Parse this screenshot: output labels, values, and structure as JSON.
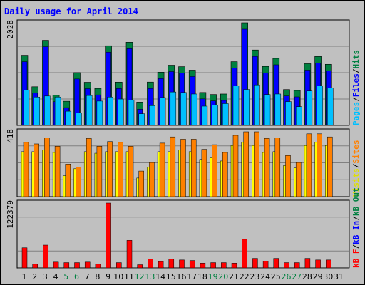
{
  "chart_data": {
    "type": "bar",
    "title": "Daily usage for April 2014",
    "days": [
      "1",
      "2",
      "3",
      "4",
      "5",
      "6",
      "7",
      "8",
      "9",
      "10",
      "11",
      "12",
      "13",
      "14",
      "15",
      "16",
      "17",
      "18",
      "19",
      "20",
      "21",
      "22",
      "23",
      "24",
      "25",
      "26",
      "27",
      "28",
      "29",
      "30",
      "31"
    ],
    "weekend_days": [
      "5",
      "6",
      "12",
      "13",
      "19",
      "20",
      "26",
      "27"
    ],
    "panels": [
      {
        "id": "hits-files-pages",
        "scale_label": "2028",
        "ymax": 2028,
        "series": [
          {
            "name": "Hits",
            "color": "#008040",
            "values": [
              1386,
              763,
              1682,
              595,
              477,
              1044,
              852,
              730,
              1574,
              855,
              1643,
              460,
              856,
              1052,
              1190,
              1160,
              1092,
              650,
              610,
              620,
              1259,
              2028,
              1490,
              1166,
              1324,
              708,
              690,
              1219,
              1361,
              1207
            ]
          },
          {
            "name": "Files",
            "color": "#0000ff",
            "values": [
              1386,
              763,
              1682,
              595,
              477,
              1044,
              852,
              730,
              1574,
              855,
              1643,
              320,
              856,
              1052,
              1190,
              1160,
              1092,
              650,
              610,
              620,
              1259,
              2028,
              1490,
              1166,
              1324,
              708,
              690,
              1219,
              1361,
              1207
            ]
          },
          {
            "name": "Pages",
            "color": "#00c0ff",
            "values": [
              700,
              560,
              580,
              560,
              280,
              250,
              590,
              480,
              560,
              520,
              500,
              230,
              390,
              550,
              660,
              650,
              620,
              380,
              400,
              430,
              780,
              710,
              800,
              610,
              620,
              470,
              370,
              680,
              780,
              740
            ]
          }
        ],
        "axis_label_parts": [
          {
            "text": "Pages",
            "color": "#00c0ff"
          },
          {
            "text": "/",
            "color": "#000000"
          },
          {
            "text": "Files",
            "color": "#0000ff"
          },
          {
            "text": "/",
            "color": "#000000"
          },
          {
            "text": "Hits",
            "color": "#008040"
          }
        ]
      },
      {
        "id": "visits-sites",
        "scale_label": "418",
        "ymax": 418,
        "series": [
          {
            "name": "Sites",
            "color": "#ff8000",
            "values": [
              350,
              340,
              380,
              325,
              210,
              190,
              375,
              325,
              355,
              350,
              325,
              165,
              220,
              345,
              385,
              370,
              370,
              305,
              335,
              285,
              395,
              418,
              418,
              375,
              380,
              265,
              220,
              405,
              405,
              385
            ]
          },
          {
            "name": "Visits",
            "color": "#ffff00",
            "values": [
              290,
              290,
              300,
              285,
              135,
              180,
              290,
              280,
              290,
              290,
              290,
              120,
              190,
              290,
              290,
              300,
              290,
              240,
              250,
              230,
              330,
              350,
              330,
              285,
              290,
              200,
              185,
              330,
              350,
              330
            ]
          }
        ],
        "axis_label_parts": [
          {
            "text": "Visits",
            "color": "#e0e000"
          },
          {
            "text": "/",
            "color": "#000000"
          },
          {
            "text": "Sites",
            "color": "#ff8000"
          }
        ]
      },
      {
        "id": "kb",
        "scale_label": "122379",
        "ymax": 122379,
        "series": [
          {
            "name": "kB F",
            "color": "#ff0000",
            "values": [
              38000,
              7000,
              43000,
              11000,
              10000,
              10000,
              11000,
              7000,
              122379,
              10000,
              52000,
              6000,
              17000,
              12000,
              17000,
              15000,
              14000,
              9000,
              10000,
              10000,
              9000,
              54000,
              18000,
              13000,
              18000,
              10000,
              10000,
              18000,
              15000,
              15000
            ]
          }
        ],
        "axis_label_parts": [
          {
            "text": "kB F",
            "color": "#ff0000"
          },
          {
            "text": "/",
            "color": "#000000"
          },
          {
            "text": "kB In",
            "color": "#0000ff"
          },
          {
            "text": "/",
            "color": "#000000"
          },
          {
            "text": "kB Out",
            "color": "#008040"
          }
        ]
      }
    ]
  }
}
